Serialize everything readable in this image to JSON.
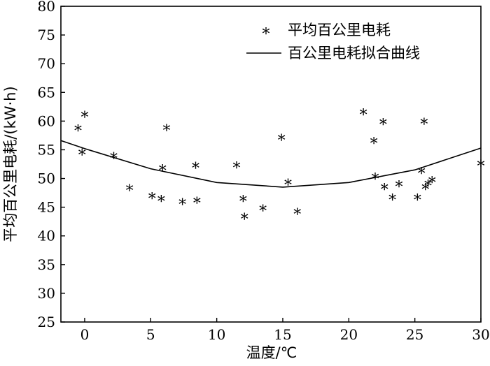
{
  "chart_data": {
    "type": "scatter",
    "xlabel": "温度/℃",
    "ylabel": "平均百公里电耗/(kW·h)",
    "xlim": [
      -1.8,
      30
    ],
    "ylim": [
      25,
      80
    ],
    "xticks": [
      0,
      5,
      10,
      15,
      20,
      25,
      30
    ],
    "yticks": [
      25,
      30,
      35,
      40,
      45,
      50,
      55,
      60,
      65,
      70,
      75,
      80
    ],
    "grid": false,
    "legend_position": "top-right",
    "series": [
      {
        "name": "平均百公里电耗",
        "kind": "scatter",
        "marker": "*",
        "points": [
          [
            -0.5,
            58.2
          ],
          [
            0.0,
            60.6
          ],
          [
            -0.2,
            54.0
          ],
          [
            2.2,
            53.4
          ],
          [
            3.4,
            47.8
          ],
          [
            5.1,
            46.4
          ],
          [
            5.8,
            45.9
          ],
          [
            5.9,
            51.3
          ],
          [
            6.2,
            58.3
          ],
          [
            7.4,
            45.4
          ],
          [
            8.4,
            51.7
          ],
          [
            8.5,
            45.6
          ],
          [
            11.5,
            51.8
          ],
          [
            12.0,
            45.9
          ],
          [
            12.1,
            42.8
          ],
          [
            13.5,
            44.3
          ],
          [
            14.9,
            56.6
          ],
          [
            15.4,
            48.8
          ],
          [
            16.1,
            43.7
          ],
          [
            21.1,
            61.0
          ],
          [
            21.9,
            56.0
          ],
          [
            22.0,
            49.8
          ],
          [
            22.6,
            59.3
          ],
          [
            22.7,
            48.0
          ],
          [
            23.3,
            46.2
          ],
          [
            23.8,
            48.5
          ],
          [
            25.2,
            46.2
          ],
          [
            25.5,
            50.8
          ],
          [
            25.7,
            59.4
          ],
          [
            25.8,
            48.0
          ],
          [
            26.0,
            48.6
          ],
          [
            26.3,
            49.2
          ],
          [
            30.0,
            52.1
          ]
        ]
      },
      {
        "name": "百公里电耗拟合曲线",
        "kind": "line",
        "points": [
          [
            -1.8,
            56.6
          ],
          [
            0,
            55.2
          ],
          [
            5,
            51.7
          ],
          [
            10,
            49.3
          ],
          [
            15,
            48.5
          ],
          [
            20,
            49.3
          ],
          [
            25,
            51.5
          ],
          [
            30,
            55.3
          ]
        ]
      }
    ]
  }
}
